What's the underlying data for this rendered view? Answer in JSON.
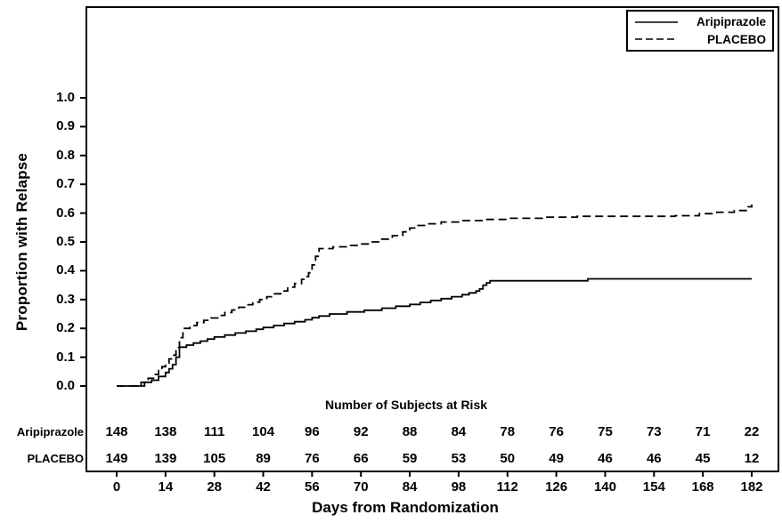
{
  "chart_data": {
    "type": "line",
    "subtype": "kaplan_meier_step",
    "title": "",
    "xlabel": "Days from Randomization",
    "ylabel": "Proportion with Relapse",
    "xlim": [
      0,
      182
    ],
    "ylim": [
      0,
      1.0
    ],
    "xticks": [
      0,
      14,
      28,
      42,
      56,
      70,
      84,
      98,
      112,
      126,
      140,
      154,
      168,
      182
    ],
    "yticks": [
      0.0,
      0.1,
      0.2,
      0.3,
      0.4,
      0.5,
      0.6,
      0.7,
      0.8,
      0.9,
      1.0
    ],
    "grid": false,
    "legend_position": "top-right",
    "colors": {
      "line": "#000000",
      "background": "#ffffff"
    },
    "series": [
      {
        "name": "Aripiprazole",
        "style": "solid",
        "points": [
          [
            0,
            0
          ],
          [
            8,
            0.013
          ],
          [
            10,
            0.02
          ],
          [
            12,
            0.033
          ],
          [
            14,
            0.047
          ],
          [
            15,
            0.06
          ],
          [
            16,
            0.074
          ],
          [
            17,
            0.1
          ],
          [
            18,
            0.135
          ],
          [
            20,
            0.142
          ],
          [
            22,
            0.149
          ],
          [
            24,
            0.156
          ],
          [
            26,
            0.163
          ],
          [
            28,
            0.17
          ],
          [
            31,
            0.177
          ],
          [
            34,
            0.184
          ],
          [
            37,
            0.19
          ],
          [
            40,
            0.197
          ],
          [
            42,
            0.203
          ],
          [
            45,
            0.21
          ],
          [
            48,
            0.217
          ],
          [
            51,
            0.223
          ],
          [
            54,
            0.23
          ],
          [
            56,
            0.237
          ],
          [
            58,
            0.243
          ],
          [
            61,
            0.25
          ],
          [
            66,
            0.257
          ],
          [
            71,
            0.263
          ],
          [
            76,
            0.27
          ],
          [
            80,
            0.277
          ],
          [
            84,
            0.283
          ],
          [
            87,
            0.29
          ],
          [
            90,
            0.297
          ],
          [
            93,
            0.303
          ],
          [
            96,
            0.31
          ],
          [
            99,
            0.317
          ],
          [
            101,
            0.323
          ],
          [
            103,
            0.33
          ],
          [
            104,
            0.337
          ],
          [
            105,
            0.35
          ],
          [
            106,
            0.358
          ],
          [
            107,
            0.365
          ],
          [
            135,
            0.372
          ],
          [
            182,
            0.372
          ]
        ]
      },
      {
        "name": "PLACEBO",
        "style": "dashed",
        "points": [
          [
            0,
            0
          ],
          [
            7,
            0.013
          ],
          [
            9,
            0.027
          ],
          [
            11,
            0.04
          ],
          [
            12,
            0.054
          ],
          [
            13,
            0.067
          ],
          [
            14,
            0.08
          ],
          [
            15,
            0.094
          ],
          [
            16,
            0.107
          ],
          [
            17,
            0.134
          ],
          [
            18,
            0.168
          ],
          [
            19,
            0.2
          ],
          [
            21,
            0.21
          ],
          [
            23,
            0.22
          ],
          [
            25,
            0.228
          ],
          [
            27,
            0.236
          ],
          [
            29,
            0.245
          ],
          [
            31,
            0.255
          ],
          [
            33,
            0.264
          ],
          [
            35,
            0.273
          ],
          [
            37,
            0.282
          ],
          [
            39,
            0.291
          ],
          [
            41,
            0.3
          ],
          [
            43,
            0.31
          ],
          [
            45,
            0.32
          ],
          [
            47,
            0.33
          ],
          [
            49,
            0.343
          ],
          [
            51,
            0.356
          ],
          [
            53,
            0.37
          ],
          [
            54,
            0.38
          ],
          [
            55,
            0.393
          ],
          [
            56,
            0.42
          ],
          [
            57,
            0.45
          ],
          [
            58,
            0.477
          ],
          [
            62,
            0.483
          ],
          [
            66,
            0.488
          ],
          [
            70,
            0.493
          ],
          [
            73,
            0.5
          ],
          [
            76,
            0.51
          ],
          [
            79,
            0.522
          ],
          [
            82,
            0.535
          ],
          [
            84,
            0.548
          ],
          [
            86,
            0.557
          ],
          [
            89,
            0.563
          ],
          [
            93,
            0.569
          ],
          [
            98,
            0.574
          ],
          [
            105,
            0.578
          ],
          [
            112,
            0.582
          ],
          [
            122,
            0.586
          ],
          [
            132,
            0.589
          ],
          [
            160,
            0.591
          ],
          [
            167,
            0.598
          ],
          [
            172,
            0.603
          ],
          [
            177,
            0.609
          ],
          [
            181,
            0.622
          ],
          [
            182,
            0.63
          ]
        ]
      }
    ],
    "risk_table": {
      "title": "Number of Subjects at Risk",
      "rows": [
        {
          "label": "Aripiprazole",
          "values": [
            148,
            138,
            111,
            104,
            96,
            92,
            88,
            84,
            78,
            76,
            75,
            73,
            71,
            22
          ]
        },
        {
          "label": "PLACEBO",
          "values": [
            149,
            139,
            105,
            89,
            76,
            66,
            59,
            53,
            50,
            49,
            46,
            46,
            45,
            12
          ]
        }
      ]
    }
  }
}
